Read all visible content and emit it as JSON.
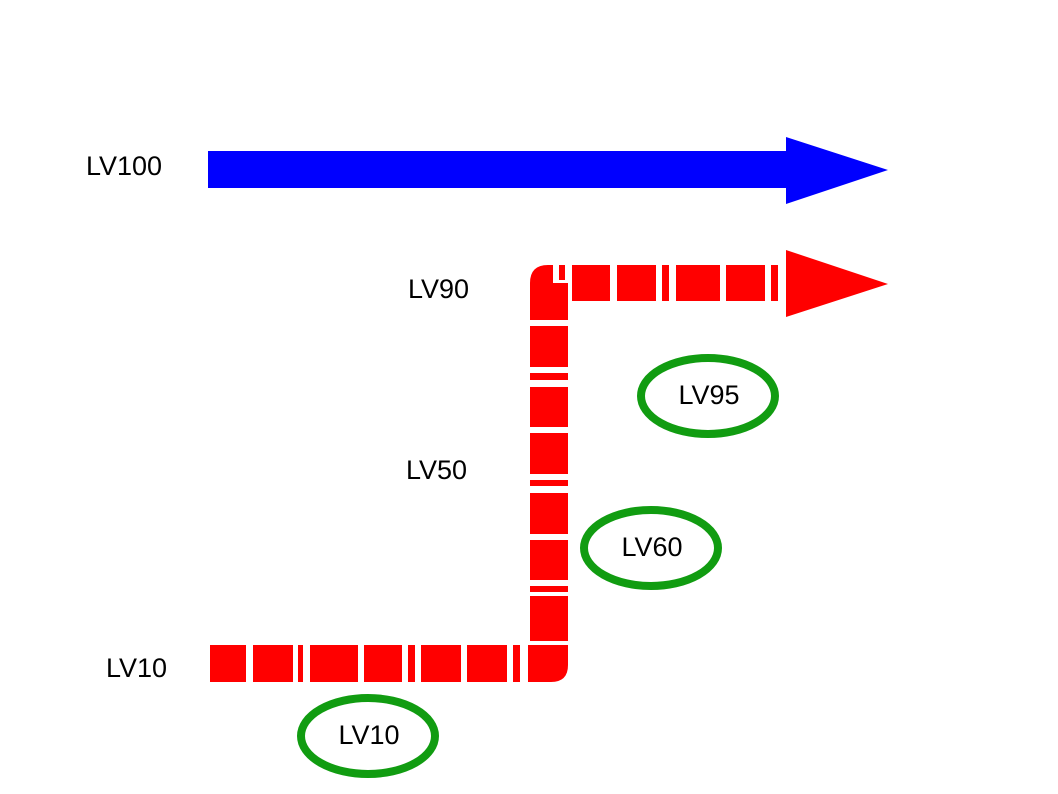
{
  "colors": {
    "background": "#ffffff",
    "blue_path": "#0000ff",
    "red_path": "#ff0000",
    "milestone_ring": "#119c11",
    "text": "#000000"
  },
  "level_labels": {
    "lv100": "LV100",
    "lv90": "LV90",
    "lv50": "LV50",
    "lv10": "LV10"
  },
  "milestones": {
    "lv95": "LV95",
    "lv60": "LV60",
    "lv10": "LV10"
  }
}
